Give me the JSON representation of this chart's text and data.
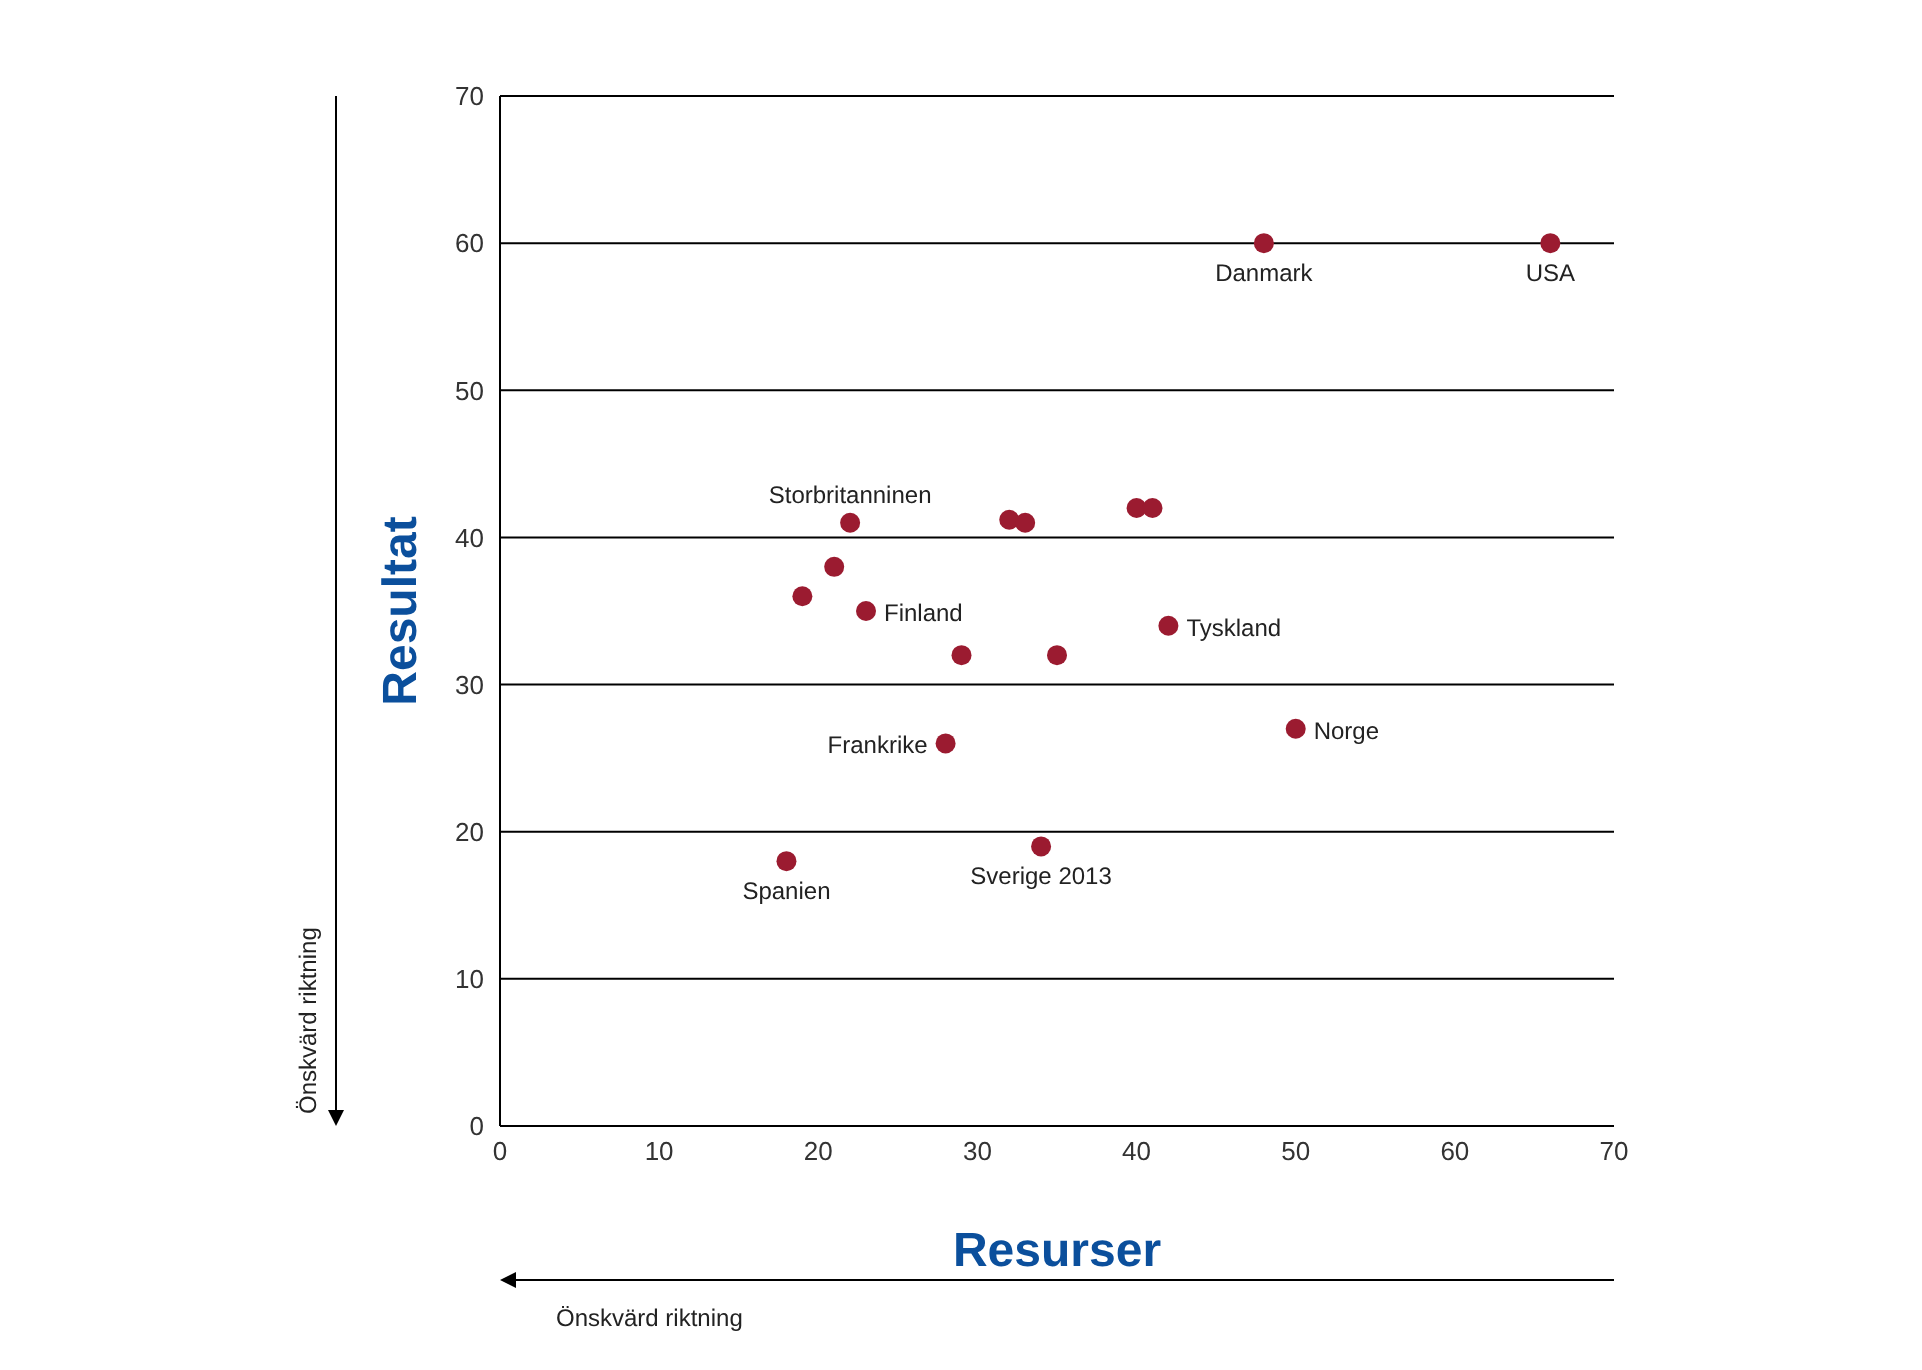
{
  "chart_data": {
    "type": "scatter",
    "xlabel": "Resurser",
    "ylabel": "Resultat",
    "x": [
      48,
      66,
      22,
      32,
      33,
      40,
      41,
      21,
      19,
      23,
      29,
      35,
      42,
      50,
      28,
      18,
      34
    ],
    "series": [
      {
        "color": "#9b1b30",
        "values": [
          60,
          60,
          41,
          41.2,
          41,
          42,
          42,
          38,
          36,
          35,
          32,
          32,
          34,
          27,
          26,
          18,
          19
        ]
      }
    ],
    "xlim": [
      0,
      70
    ],
    "ylim": [
      0,
      70
    ],
    "xticks": [
      0,
      10,
      20,
      30,
      40,
      50,
      60,
      70
    ],
    "yticks": [
      0,
      10,
      20,
      30,
      40,
      50,
      60,
      70
    ],
    "grid": "y",
    "marker": "circle",
    "legend": false,
    "annotations": [
      {
        "text": "Danmark",
        "x": 48,
        "y": 60
      },
      {
        "text": "USA",
        "x": 66,
        "y": 60
      },
      {
        "text": "Storbritanninen",
        "x": 22,
        "y": 41
      },
      {
        "text": "Finland",
        "x": 23,
        "y": 35
      },
      {
        "text": "Tyskland",
        "x": 42,
        "y": 34
      },
      {
        "text": "Frankrike",
        "x": 28,
        "y": 26
      },
      {
        "text": "Norge",
        "x": 50,
        "y": 27
      },
      {
        "text": "Spanien",
        "x": 18,
        "y": 18
      },
      {
        "text": "Sverige 2013",
        "x": 34,
        "y": 19
      },
      "Önskvärd riktning",
      "Önskvärd riktning"
    ]
  }
}
